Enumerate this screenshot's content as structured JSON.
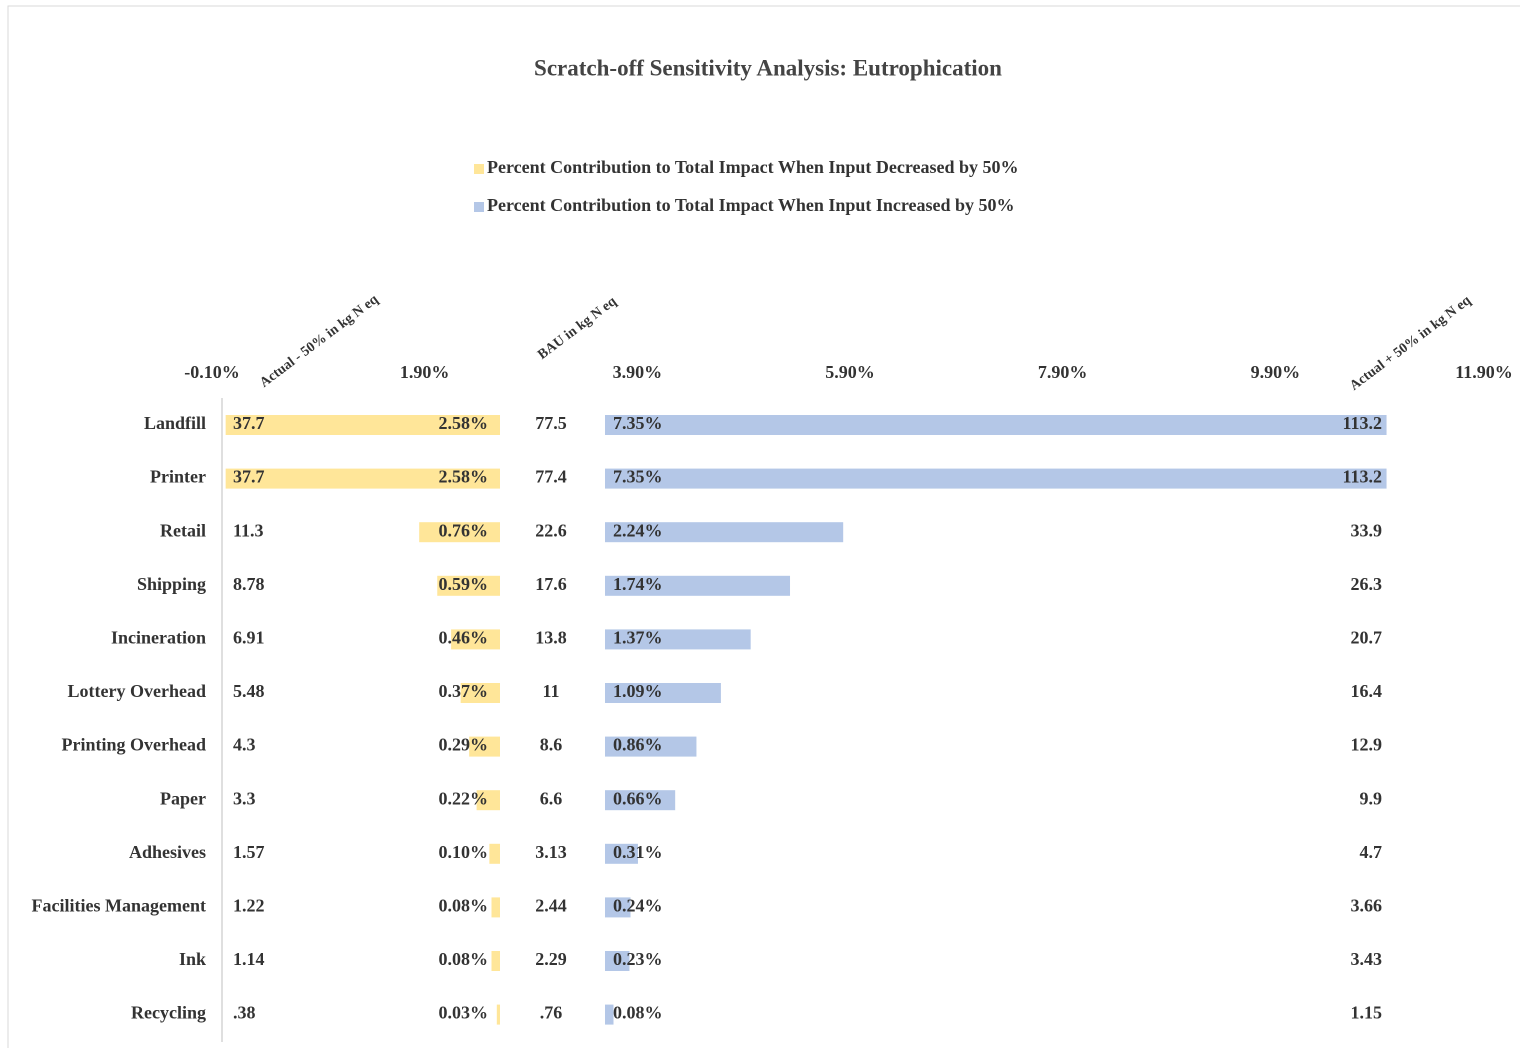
{
  "chart_data": {
    "type": "bar",
    "title": "Scratch-off Sensitivity Analysis: Eutrophication",
    "categories": [
      "Landfill",
      "Printer",
      "Retail",
      "Shipping",
      "Incineration",
      "Lottery Overhead",
      "Printing Overhead",
      "Paper",
      "Adhesives",
      "Facilities Management",
      "Ink",
      "Recycling"
    ],
    "series": [
      {
        "name": "Percent Contribution to Total Impact When Input Decreased by 50%",
        "color": "#ffe699",
        "values": [
          2.58,
          2.58,
          0.76,
          0.59,
          0.46,
          0.37,
          0.29,
          0.22,
          0.1,
          0.08,
          0.08,
          0.03
        ],
        "value_labels": [
          "2.58%",
          "2.58%",
          "0.76%",
          "0.59%",
          "0.46%",
          "0.37%",
          "0.29%",
          "0.22%",
          "0.10%",
          "0.08%",
          "0.08%",
          "0.03%"
        ]
      },
      {
        "name": "Percent Contribution to Total Impact When Input Increased by 50%",
        "color": "#b4c7e7",
        "values": [
          7.35,
          7.35,
          2.24,
          1.74,
          1.37,
          1.09,
          0.86,
          0.66,
          0.31,
          0.24,
          0.23,
          0.08
        ],
        "value_labels": [
          "7.35%",
          "7.35%",
          "2.24%",
          "1.74%",
          "1.37%",
          "1.09%",
          "0.86%",
          "0.66%",
          "0.31%",
          "0.24%",
          "0.23%",
          "0.08%"
        ]
      }
    ],
    "columns": [
      {
        "name": "Actual - 50% in kg N eq",
        "values": [
          37.7,
          37.7,
          11.3,
          8.78,
          6.91,
          5.48,
          4.3,
          3.3,
          1.57,
          1.22,
          1.14,
          0.38
        ],
        "value_labels": [
          "37.7",
          "37.7",
          "11.3",
          "8.78",
          "6.91",
          "5.48",
          "4.3",
          "3.3",
          "1.57",
          "1.22",
          "1.14",
          ".38"
        ]
      },
      {
        "name": "BAU in kg N eq",
        "values": [
          77.5,
          77.4,
          22.6,
          17.6,
          13.8,
          11,
          8.6,
          6.6,
          3.13,
          2.44,
          2.29,
          0.76
        ],
        "value_labels": [
          "77.5",
          "77.4",
          "22.6",
          "17.6",
          "13.8",
          "11",
          "8.6",
          "6.6",
          "3.13",
          "2.44",
          "2.29",
          ".76"
        ]
      },
      {
        "name": "Actual + 50% in kg N eq",
        "values": [
          113.2,
          113.2,
          33.9,
          26.3,
          20.7,
          16.4,
          12.9,
          9.9,
          4.7,
          3.66,
          3.43,
          1.15
        ]
      }
    ],
    "xlim": [
      -0.1,
      11.9
    ],
    "xticks": [
      {
        "value": -0.1,
        "label": "-0.10%"
      },
      {
        "value": 1.9,
        "label": "1.90%"
      },
      {
        "value": 3.9,
        "label": "3.90%"
      },
      {
        "value": 5.9,
        "label": "5.90%"
      },
      {
        "value": 7.9,
        "label": "7.90%"
      },
      {
        "value": 9.9,
        "label": "9.90%"
      },
      {
        "value": 11.9,
        "label": "11.90%"
      }
    ]
  }
}
